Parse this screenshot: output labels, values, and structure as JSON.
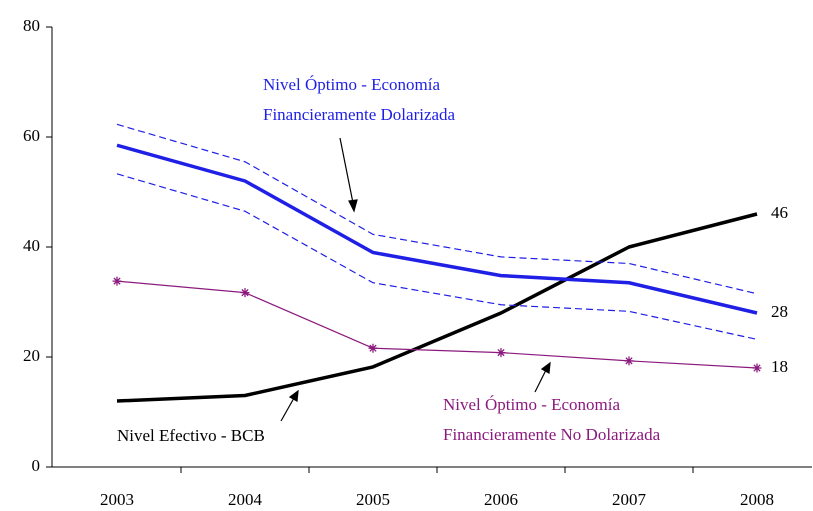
{
  "chart_data": {
    "type": "line",
    "categories": [
      "2003",
      "2004",
      "2005",
      "2006",
      "2007",
      "2008"
    ],
    "ylim": [
      0,
      80
    ],
    "yticks": [
      0,
      20,
      40,
      60,
      80
    ],
    "grid": false,
    "series": [
      {
        "color": "#000000",
        "style": "solid",
        "width": 3.5,
        "end_label": true,
        "values": [
          12,
          13,
          18.2,
          28,
          40,
          46
        ]
      },
      {
        "color": "#1f1fe6",
        "style": "solid",
        "width": 3.5,
        "end_label": true,
        "values": [
          58.5,
          52,
          39,
          34.8,
          33.5,
          28
        ]
      },
      {
        "color": "#1f1fe6",
        "style": "dashed",
        "width": 1.2,
        "end_label": false,
        "values": [
          62.3,
          55.5,
          42.3,
          38.2,
          37,
          31.5
        ]
      },
      {
        "color": "#1f1fe6",
        "style": "dashed",
        "width": 1.2,
        "end_label": false,
        "values": [
          53.3,
          46.5,
          33.5,
          29.5,
          28.3,
          23.2
        ]
      },
      {
        "color": "#8b1a7e",
        "style": "solid",
        "width": 1.2,
        "end_label": true,
        "marker": "asterisk",
        "values": [
          33.8,
          31.7,
          21.6,
          20.8,
          19.3,
          18
        ]
      }
    ],
    "annotations": [
      {
        "lines": [
          "Nivel Óptimo - Economía",
          "Financieramente Dolarizada"
        ],
        "color": "#1f1fe6"
      },
      {
        "lines": [
          "Nivel Efectivo - BCB"
        ],
        "color": "#000000"
      },
      {
        "lines": [
          "Nivel Óptimo - Economía",
          "Financieramente No Dolarizada"
        ],
        "color": "#8b1a7e"
      }
    ]
  }
}
